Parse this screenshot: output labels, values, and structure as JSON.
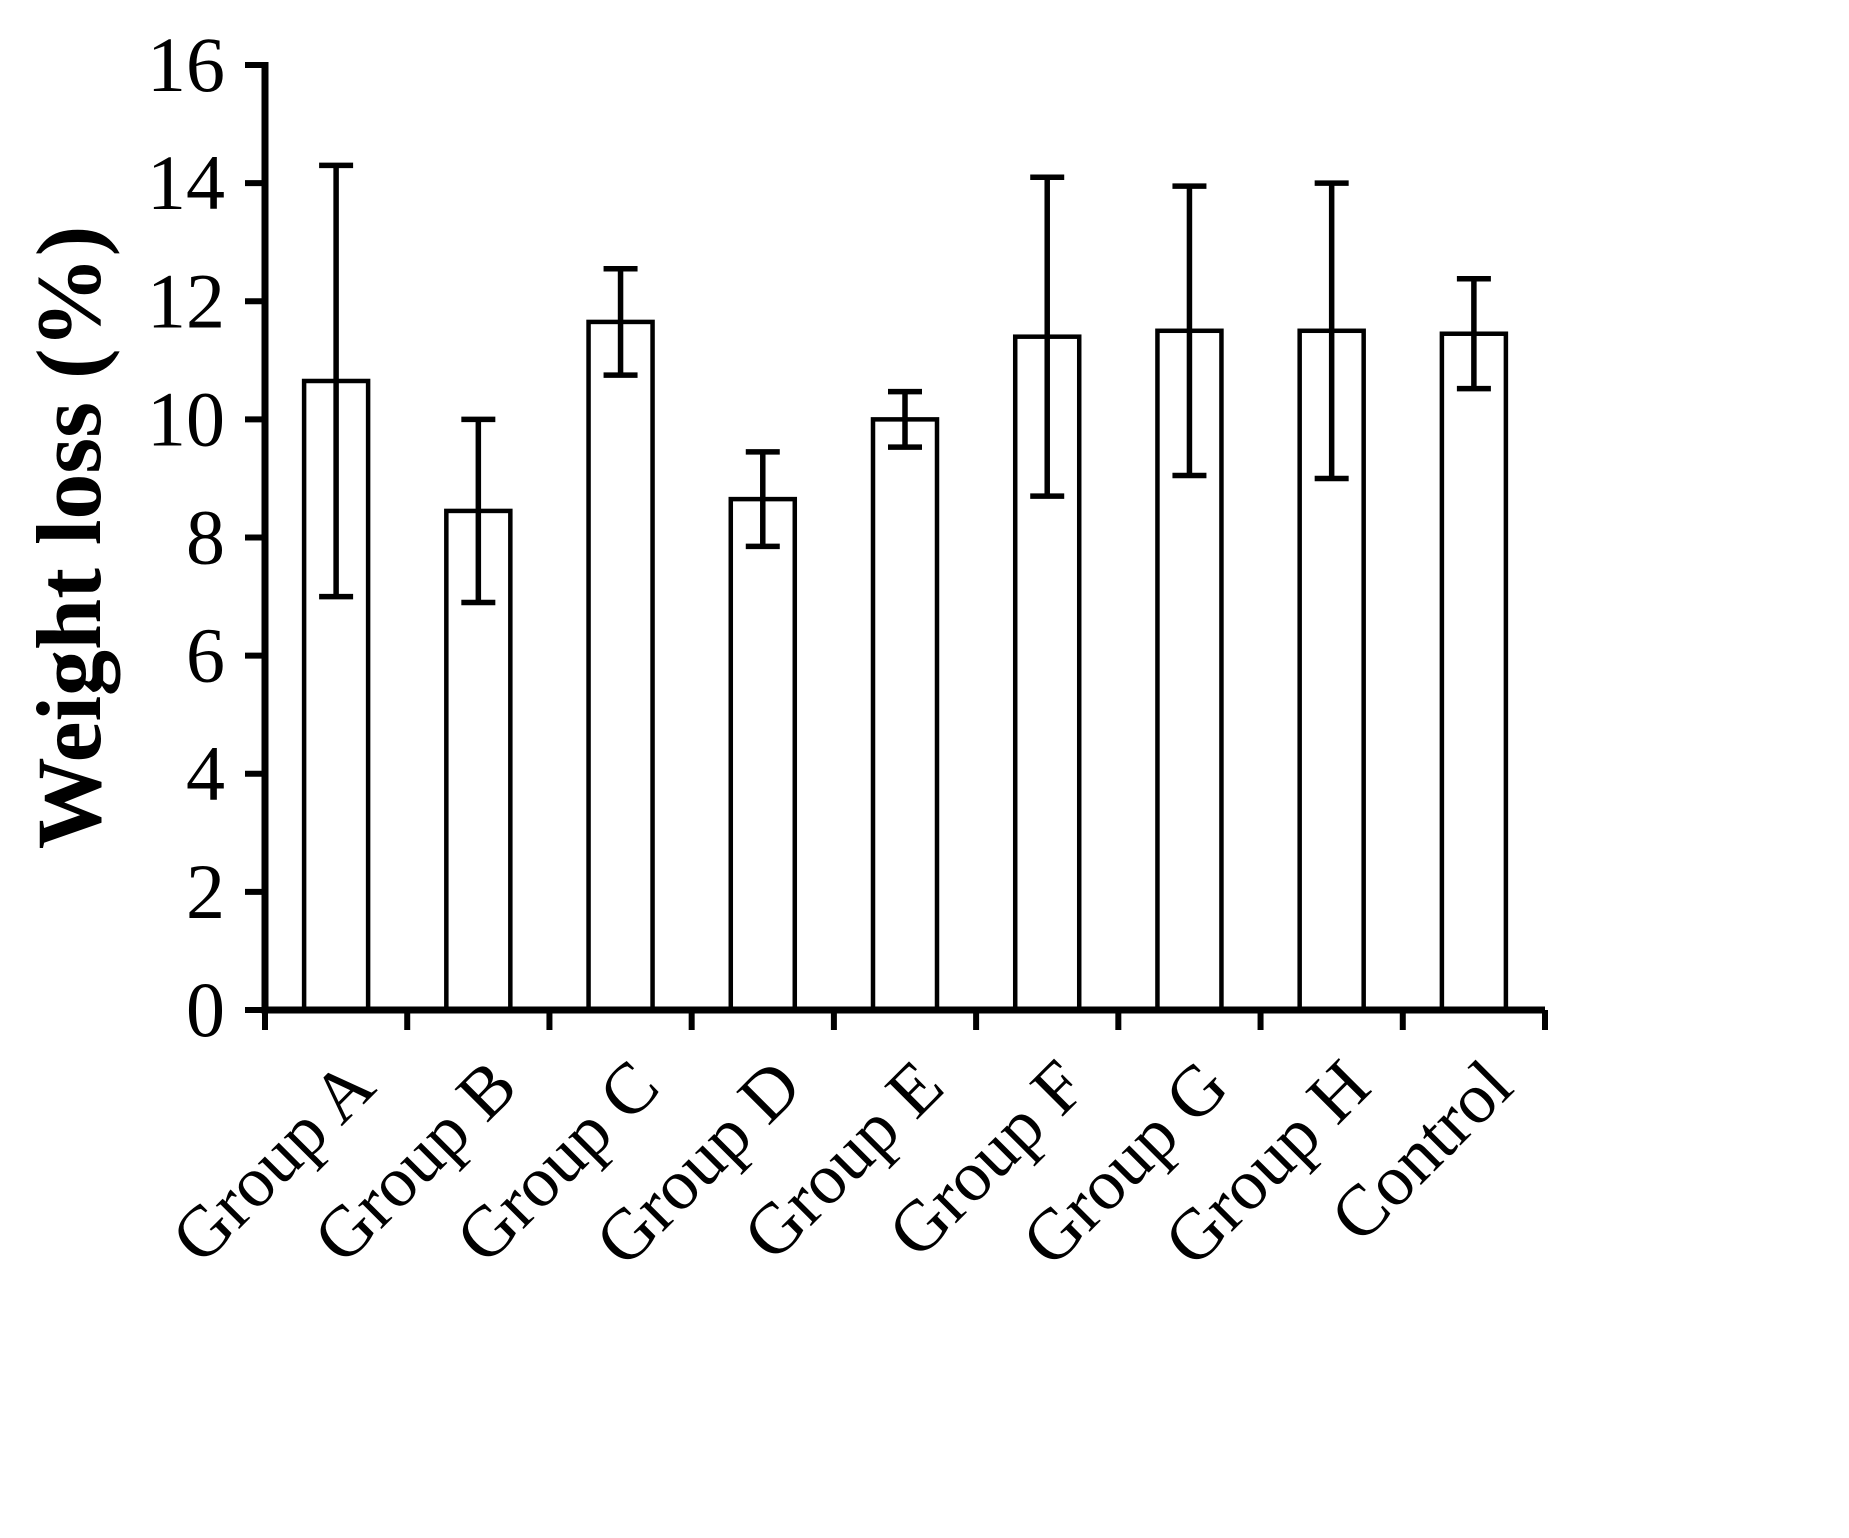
{
  "figure": {
    "background": "#ffffff"
  },
  "chart_data": {
    "type": "bar",
    "title": "",
    "xlabel": "",
    "ylabel": "Weight loss (%)",
    "categories": [
      "Group A",
      "Group B",
      "Group C",
      "Group D",
      "Group E",
      "Group F",
      "Group G",
      "Group H",
      "Control"
    ],
    "values": [
      10.65,
      8.45,
      11.65,
      8.65,
      10.0,
      11.4,
      11.5,
      11.5,
      11.45
    ],
    "errors": [
      3.65,
      1.55,
      0.9,
      0.8,
      0.47,
      2.7,
      2.45,
      2.5,
      0.93
    ],
    "ylim": [
      0,
      16
    ],
    "ytick_step": 2,
    "yticks": [
      0,
      2,
      4,
      6,
      8,
      10,
      12,
      14,
      16
    ],
    "bar_fill": "#ffffff",
    "stroke_color": "#000000",
    "grid": false,
    "legend": "none",
    "error_bars": true,
    "x_label_rotation_deg": -45
  }
}
